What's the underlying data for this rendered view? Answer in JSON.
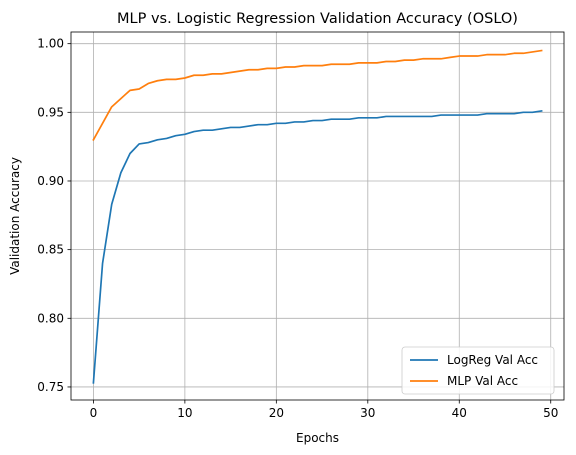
{
  "chart_data": {
    "type": "line",
    "title": "MLP vs. Logistic Regression Validation Accuracy (OSLO)",
    "xlabel": "Epochs",
    "ylabel": "Validation Accuracy",
    "xlim": [
      -2.45,
      51.45
    ],
    "ylim": [
      0.7405,
      1.0085
    ],
    "xticks": [
      0,
      10,
      20,
      30,
      40,
      50
    ],
    "yticks": [
      0.75,
      0.8,
      0.85,
      0.9,
      0.95,
      1.0
    ],
    "xtick_labels": [
      "0",
      "10",
      "20",
      "30",
      "40",
      "50"
    ],
    "ytick_labels": [
      "0.75",
      "0.80",
      "0.85",
      "0.90",
      "0.95",
      "1.00"
    ],
    "grid": true,
    "legend_position": "lower-right",
    "x": [
      0,
      1,
      2,
      3,
      4,
      5,
      6,
      7,
      8,
      9,
      10,
      11,
      12,
      13,
      14,
      15,
      16,
      17,
      18,
      19,
      20,
      21,
      22,
      23,
      24,
      25,
      26,
      27,
      28,
      29,
      30,
      31,
      32,
      33,
      34,
      35,
      36,
      37,
      38,
      39,
      40,
      41,
      42,
      43,
      44,
      45,
      46,
      47,
      48,
      49
    ],
    "series": [
      {
        "name": "LogReg Val Acc",
        "color": "#1f77b4",
        "values": [
          0.753,
          0.84,
          0.883,
          0.906,
          0.92,
          0.927,
          0.928,
          0.93,
          0.931,
          0.933,
          0.934,
          0.936,
          0.937,
          0.937,
          0.938,
          0.939,
          0.939,
          0.94,
          0.941,
          0.941,
          0.942,
          0.942,
          0.943,
          0.943,
          0.944,
          0.944,
          0.945,
          0.945,
          0.945,
          0.946,
          0.946,
          0.946,
          0.947,
          0.947,
          0.947,
          0.947,
          0.947,
          0.947,
          0.948,
          0.948,
          0.948,
          0.948,
          0.948,
          0.949,
          0.949,
          0.949,
          0.949,
          0.95,
          0.95,
          0.951
        ]
      },
      {
        "name": "MLP Val Acc",
        "color": "#ff7f0e",
        "values": [
          0.93,
          0.942,
          0.954,
          0.96,
          0.966,
          0.967,
          0.971,
          0.973,
          0.974,
          0.974,
          0.975,
          0.977,
          0.977,
          0.978,
          0.978,
          0.979,
          0.98,
          0.981,
          0.981,
          0.982,
          0.982,
          0.983,
          0.983,
          0.984,
          0.984,
          0.984,
          0.985,
          0.985,
          0.985,
          0.986,
          0.986,
          0.986,
          0.987,
          0.987,
          0.988,
          0.988,
          0.989,
          0.989,
          0.989,
          0.99,
          0.991,
          0.991,
          0.991,
          0.992,
          0.992,
          0.992,
          0.993,
          0.993,
          0.994,
          0.995
        ]
      }
    ]
  }
}
